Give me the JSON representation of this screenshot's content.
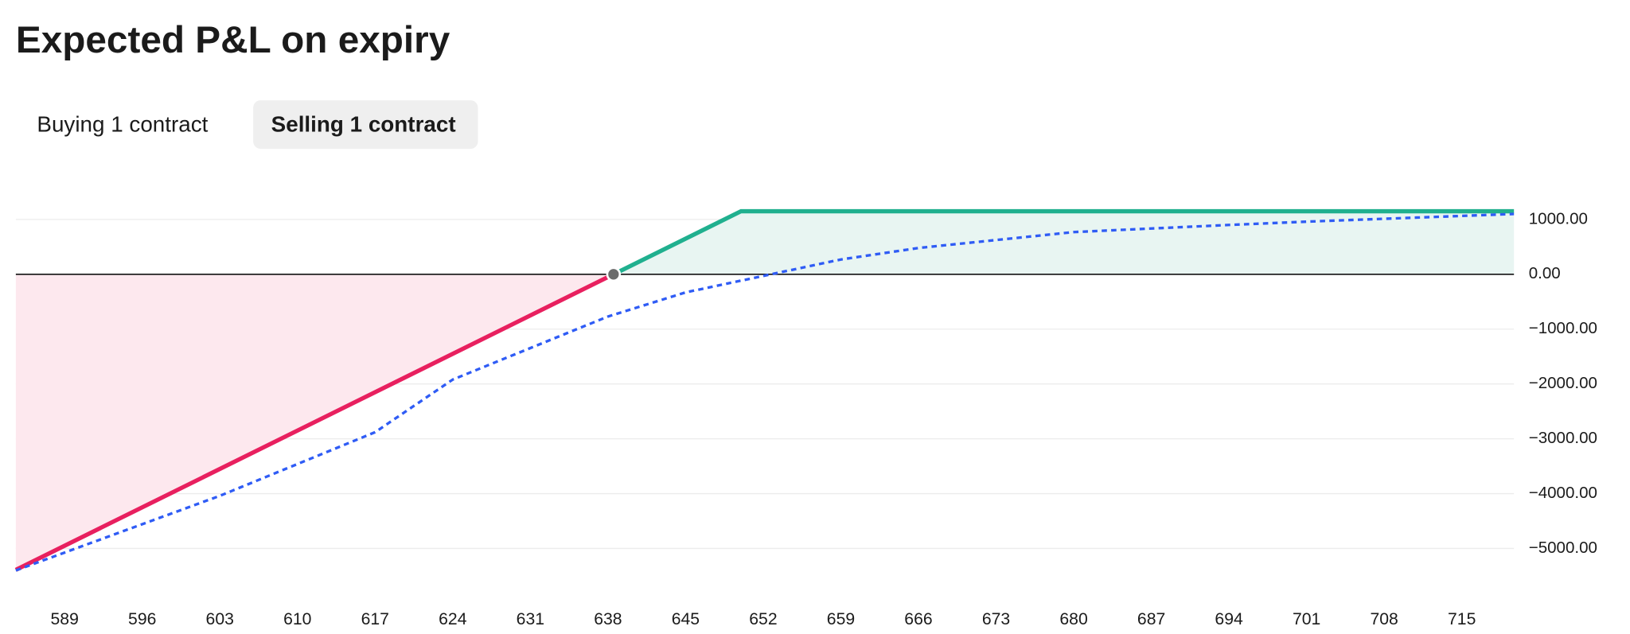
{
  "title": "Expected P&L on expiry",
  "tabs": [
    "Buying 1 contract",
    "Selling 1 contract"
  ],
  "active_tab": 1,
  "chart_data": {
    "type": "line",
    "xlim": [
      584.6,
      719.7
    ],
    "xticks": [
      589,
      596,
      603,
      610,
      617,
      624,
      631,
      638,
      645,
      652,
      659,
      666,
      673,
      680,
      687,
      694,
      701,
      708,
      715
    ],
    "ylim": [
      -5400,
      1300
    ],
    "yticks": [
      {
        "value": 1000,
        "label": "1000.00"
      },
      {
        "value": 0,
        "label": "0.00"
      },
      {
        "value": -1000,
        "label": "−1000.00"
      },
      {
        "value": -2000,
        "label": "−2000.00"
      },
      {
        "value": -3000,
        "label": "−3000.00"
      },
      {
        "value": -4000,
        "label": "−4000.00"
      },
      {
        "value": -5000,
        "label": "−5000.00"
      }
    ],
    "grid": true,
    "series": [
      {
        "color": "#e8205f",
        "fill": "#fde8ee",
        "x": [
          584.6,
          638.5
        ],
        "values": [
          -5390,
          0
        ]
      },
      {
        "color": "#20b08f",
        "fill": "#e8f5f2",
        "x": [
          638.5,
          650,
          719.7
        ],
        "values": [
          0,
          1150,
          1150
        ]
      },
      {
        "color": "#2f5cf5",
        "dashed": true,
        "x": [
          584.6,
          603,
          617,
          624,
          638,
          645,
          652.7,
          659,
          666,
          680,
          694,
          701,
          719.7
        ],
        "values": [
          -5400,
          -4040,
          -2880,
          -1920,
          -770,
          -330,
          0,
          270,
          480,
          770,
          900,
          960,
          1100
        ]
      }
    ],
    "breakeven": {
      "x": 638.5,
      "value": 0,
      "color": "#6b6b6b"
    }
  }
}
